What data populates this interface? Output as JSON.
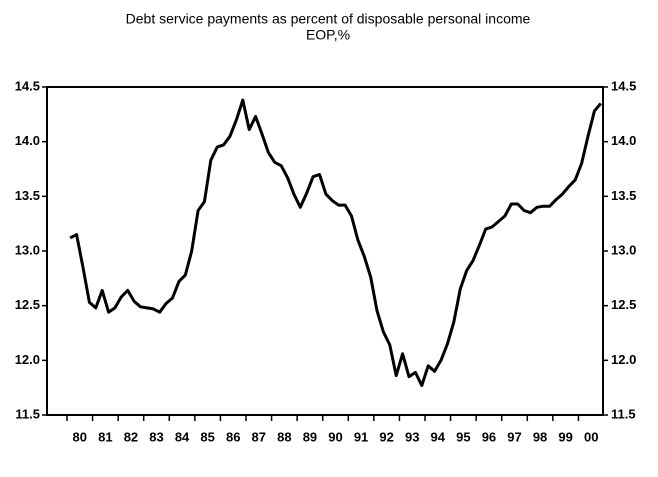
{
  "chart_data": {
    "type": "line",
    "title": "Debt service payments as percent of disposable personal income",
    "subtitle": "EOP,%",
    "categories": [
      "80",
      null,
      null,
      null,
      "81",
      null,
      null,
      null,
      "82",
      null,
      null,
      null,
      "83",
      null,
      null,
      null,
      "84",
      null,
      null,
      null,
      "85",
      null,
      null,
      null,
      "86",
      null,
      null,
      null,
      "87",
      null,
      null,
      null,
      "88",
      null,
      null,
      null,
      "89",
      null,
      null,
      null,
      "90",
      null,
      null,
      null,
      "91",
      null,
      null,
      null,
      "92",
      null,
      null,
      null,
      "93",
      null,
      null,
      null,
      "94",
      null,
      null,
      null,
      "95",
      null,
      null,
      null,
      "96",
      null,
      null,
      null,
      "97",
      null,
      null,
      null,
      "98",
      null,
      null,
      null,
      "99",
      null,
      null,
      null,
      "00",
      null,
      null,
      null
    ],
    "values": [
      13.12,
      13.15,
      12.85,
      12.53,
      12.48,
      12.64,
      12.44,
      12.48,
      12.58,
      12.64,
      12.54,
      12.49,
      12.48,
      12.47,
      12.44,
      12.52,
      12.57,
      12.72,
      12.78,
      13.0,
      13.37,
      13.45,
      13.83,
      13.95,
      13.97,
      14.05,
      14.2,
      14.38,
      14.11,
      14.23,
      14.07,
      13.9,
      13.81,
      13.78,
      13.67,
      13.52,
      13.4,
      13.53,
      13.68,
      13.7,
      13.52,
      13.46,
      13.42,
      13.42,
      13.32,
      13.1,
      12.95,
      12.76,
      12.45,
      12.26,
      12.14,
      11.86,
      12.06,
      11.85,
      11.89,
      11.77,
      11.95,
      11.9,
      12.0,
      12.15,
      12.35,
      12.65,
      12.82,
      12.91,
      13.05,
      13.2,
      13.22,
      13.27,
      13.32,
      13.43,
      13.43,
      13.37,
      13.35,
      13.4,
      13.41,
      13.41,
      13.47,
      13.52,
      13.59,
      13.65,
      13.8,
      14.05,
      14.28,
      14.35
    ],
    "color": "#000000",
    "ylim": [
      11.5,
      14.5
    ],
    "yticks": [
      {
        "value": 11.5,
        "label": "11.5"
      },
      {
        "value": 12,
        "label": "12.0"
      },
      {
        "value": 12.5,
        "label": "12.5"
      },
      {
        "value": 13,
        "label": "13.0"
      },
      {
        "value": 13.5,
        "label": "13.5"
      },
      {
        "value": 14,
        "label": "14.0"
      },
      {
        "value": 14.5,
        "label": "14.5"
      }
    ],
    "right_axis": true
  }
}
